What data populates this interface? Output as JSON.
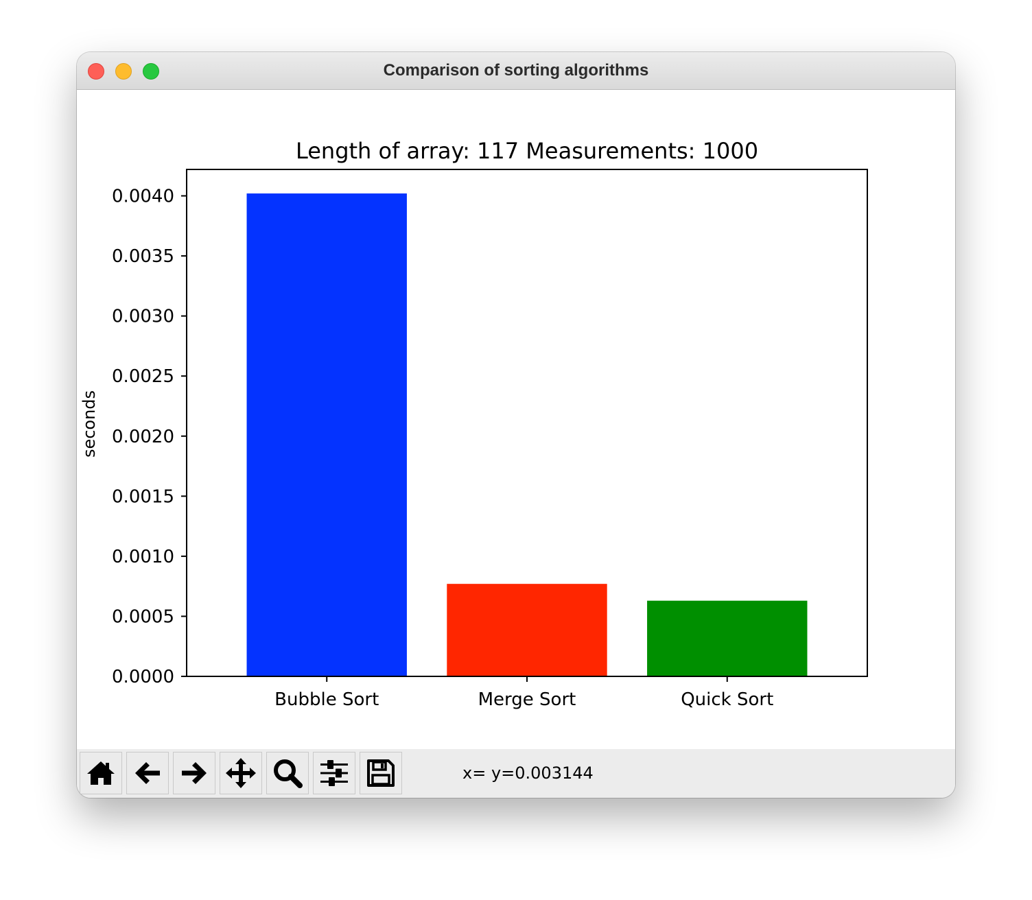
{
  "window": {
    "title": "Comparison of sorting algorithms"
  },
  "chart_data": {
    "type": "bar",
    "title": "Length of array: 117  Measurements: 1000",
    "xlabel": "",
    "ylabel": "seconds",
    "categories": [
      "Bubble Sort",
      "Merge Sort",
      "Quick Sort"
    ],
    "values": [
      0.00402,
      0.00077,
      0.00063
    ],
    "colors": [
      "#0433ff",
      "#ff2600",
      "#008f00"
    ],
    "ylim": [
      0,
      0.00422
    ],
    "yticks": [
      0.0,
      0.0005,
      0.001,
      0.0015,
      0.002,
      0.0025,
      0.003,
      0.0035,
      0.004
    ],
    "ytick_labels": [
      "0.0000",
      "0.0005",
      "0.0010",
      "0.0015",
      "0.0020",
      "0.0025",
      "0.0030",
      "0.0035",
      "0.0040"
    ],
    "grid": false,
    "legend": false
  },
  "toolbar": {
    "buttons": [
      {
        "name": "home-button",
        "icon": "home-icon"
      },
      {
        "name": "back-button",
        "icon": "arrow-left-icon"
      },
      {
        "name": "forward-button",
        "icon": "arrow-right-icon"
      },
      {
        "name": "pan-button",
        "icon": "move-icon"
      },
      {
        "name": "zoom-button",
        "icon": "magnifier-icon"
      },
      {
        "name": "configure-subplots-button",
        "icon": "sliders-icon"
      },
      {
        "name": "save-button",
        "icon": "floppy-disk-icon"
      }
    ],
    "coordinates": "x= y=0.003144"
  }
}
